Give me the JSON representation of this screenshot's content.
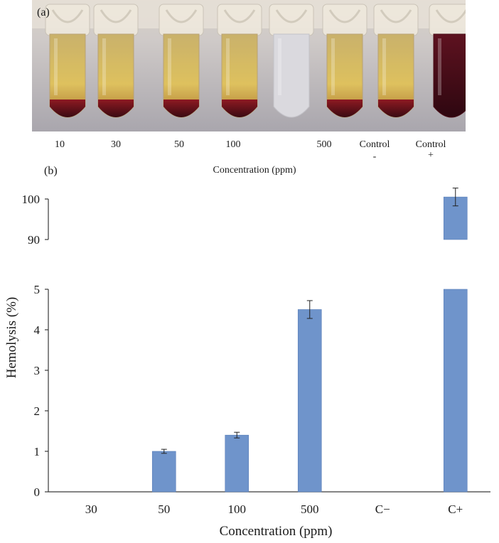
{
  "panel_a": {
    "label": "(a)",
    "tube_labels": [
      "10",
      "30",
      "50",
      "100",
      "500"
    ],
    "control_neg": {
      "line1": "Control",
      "line2": "-"
    },
    "control_pos": {
      "line1": "Control",
      "line2": "+"
    },
    "xlabel": "Concentration (ppm)"
  },
  "panel_b": {
    "label": "(b)"
  },
  "colors": {
    "bar": "#6f94cb",
    "bar_edge": "#5a7fb8",
    "axis": "#3a3a3a"
  },
  "chart_data": {
    "type": "bar",
    "categories": [
      "30",
      "50",
      "100",
      "500",
      "C−",
      "C+"
    ],
    "values": [
      0,
      1.0,
      1.4,
      4.5,
      0,
      100.5
    ],
    "errors": [
      0,
      0.05,
      0.07,
      0.22,
      0,
      2.2
    ],
    "xlabel": "Concentration (ppm)",
    "ylabel": "Hemolysis (%)",
    "axis_break": true,
    "lower_range": [
      0,
      5
    ],
    "lower_ticks": [
      "0",
      "1",
      "2",
      "3",
      "4",
      "5"
    ],
    "upper_range": [
      90,
      102
    ],
    "upper_ticks": [
      "90",
      "100"
    ],
    "grid": false
  }
}
